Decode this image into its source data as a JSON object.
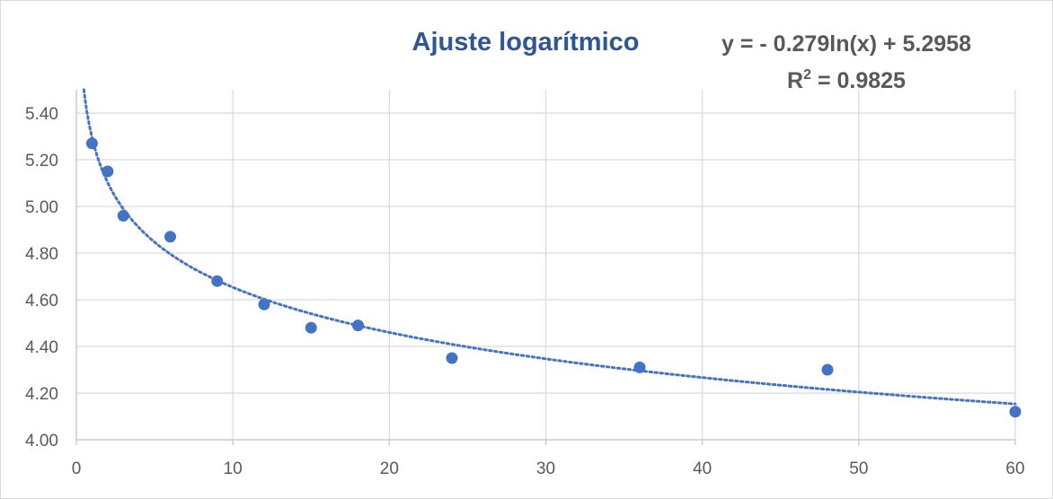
{
  "chart_data": {
    "type": "scatter",
    "title": "Ajuste logarítmico",
    "xlabel": "",
    "ylabel": "",
    "xlim": [
      0,
      60
    ],
    "ylim": [
      4.0,
      5.5
    ],
    "x_ticks": [
      "0",
      "10",
      "20",
      "30",
      "40",
      "50",
      "60"
    ],
    "y_ticks": [
      "4.00",
      "4.20",
      "4.40",
      "4.60",
      "4.80",
      "5.00",
      "5.20",
      "5.40"
    ],
    "grid": true,
    "legend": "none",
    "series": [
      {
        "x": [
          1,
          2,
          3,
          6,
          9,
          12,
          15,
          18,
          24,
          36,
          48,
          60
        ],
        "y": [
          5.27,
          5.15,
          4.96,
          4.87,
          4.68,
          4.58,
          4.48,
          4.49,
          4.35,
          4.31,
          4.3,
          4.12
        ],
        "color": "#4472C4"
      }
    ],
    "trendline": {
      "type": "logarithmic",
      "a": -0.279,
      "b": 5.2958,
      "equation_label": "y = - 0.279ln(x) + 5.2958",
      "r2_prefix": "R",
      "r2_sup": "2",
      "r2_value": " = 0.9825",
      "color": "#4472C4"
    }
  }
}
